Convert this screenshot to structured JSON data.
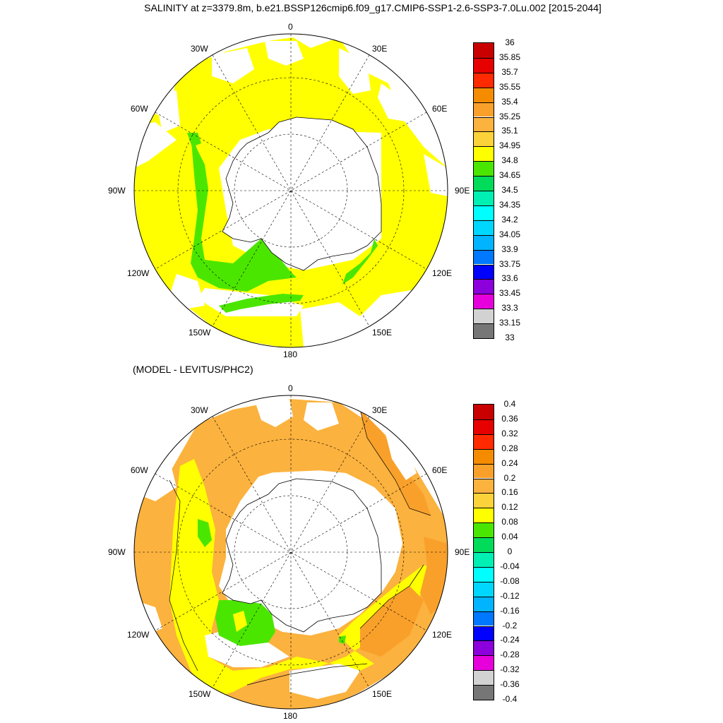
{
  "title": "SALINITY at z=3379.8m, b.e21.BSSP126cmip6.f09_g17.CMIP6-SSP1-2.6-SSP3-7.0Lu.002 [2015-2044]",
  "subtitle": "(MODEL - LEVITUS/PHC2)",
  "lon_labels": {
    "top": "0",
    "top_right": "30E",
    "right_upper": "60E",
    "right": "90E",
    "right_lower": "120E",
    "bottom_right": "150E",
    "bottom": "180",
    "bottom_left": "150W",
    "left_lower": "120W",
    "left": "90W",
    "left_upper": "60W",
    "top_left": "30W"
  },
  "colorbar_top": {
    "labels": [
      "36",
      "35.85",
      "35.7",
      "35.55",
      "35.4",
      "35.25",
      "35.1",
      "34.95",
      "34.8",
      "34.65",
      "34.5",
      "34.35",
      "34.2",
      "34.05",
      "33.9",
      "33.75",
      "33.6",
      "33.45",
      "33.3",
      "33.15",
      "33"
    ],
    "colors": [
      "#c80000",
      "#e60000",
      "#ff2a00",
      "#f58c00",
      "#f9a02b",
      "#fbb23e",
      "#fcd23a",
      "#ffff00",
      "#4be600",
      "#00dc5a",
      "#00f0b4",
      "#00ffff",
      "#00d7ff",
      "#00b4ff",
      "#0078ff",
      "#0000ff",
      "#8c00dc",
      "#e600dc",
      "#d2d2d2",
      "#767676"
    ]
  },
  "colorbar_bottom": {
    "labels": [
      "0.4",
      "0.36",
      "0.32",
      "0.28",
      "0.24",
      "0.2",
      "0.16",
      "0.12",
      "0.08",
      "0.04",
      "0",
      "-0.04",
      "-0.08",
      "-0.12",
      "-0.16",
      "-0.2",
      "-0.24",
      "-0.28",
      "-0.32",
      "-0.36",
      "-0.4"
    ],
    "colors": [
      "#c80000",
      "#e60000",
      "#ff2a00",
      "#f58c00",
      "#f9a02b",
      "#fbb23e",
      "#fcd23a",
      "#ffff00",
      "#4be600",
      "#00dc5a",
      "#00f0b4",
      "#00ffff",
      "#00d7ff",
      "#00b4ff",
      "#0078ff",
      "#0000ff",
      "#8c00dc",
      "#e600dc",
      "#d2d2d2",
      "#767676"
    ]
  }
}
